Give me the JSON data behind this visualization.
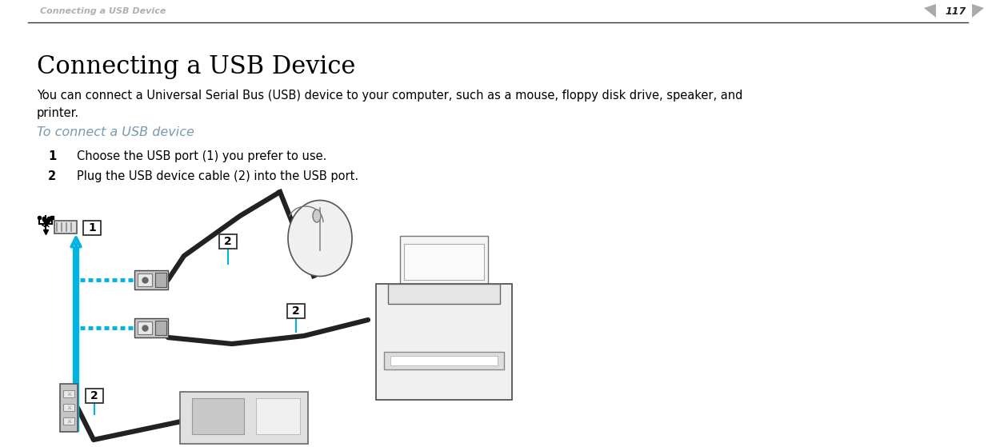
{
  "bg_color": "#ffffff",
  "header_text": "Connecting a USB Device",
  "header_text_color": "#b0b0b0",
  "page_number": "117",
  "separator_color": "#333333",
  "title": "Connecting a USB Device",
  "title_fontsize": 22,
  "title_color": "#000000",
  "body_text": "You can connect a Universal Serial Bus (USB) device to your computer, such as a mouse, floppy disk drive, speaker, and\nprinter.",
  "body_fontsize": 10.5,
  "body_color": "#000000",
  "subheading": "To connect a USB device",
  "subheading_color": "#7a9ab0",
  "subheading_fontsize": 11.5,
  "step1_num": "1",
  "step1_text": "Choose the USB port (1) you prefer to use.",
  "step2_num": "2",
  "step2_text": "Plug the USB device cable (2) into the USB port.",
  "step_fontsize": 10.5,
  "step_color": "#000000",
  "arrow_color": "#00b4e0",
  "dashes_color": "#00b4e0"
}
